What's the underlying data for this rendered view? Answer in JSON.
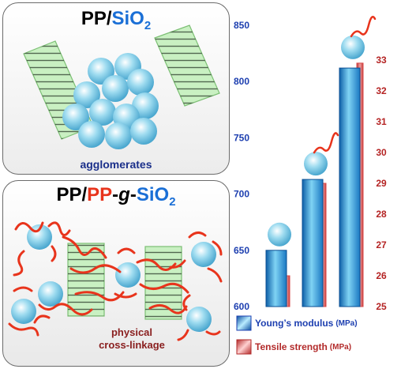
{
  "top_panel": {
    "title_parts": [
      "PP",
      "/",
      "SiO",
      "2"
    ],
    "caption": "agglomerates"
  },
  "bottom_panel": {
    "title_parts": [
      "PP",
      "/",
      "PP",
      "-",
      "g",
      "-",
      "SiO",
      "2"
    ],
    "caption_lines": [
      "physical",
      "cross-linkage"
    ]
  },
  "colors": {
    "blue_bar": "#2ea6df",
    "red_bar": "#d94848",
    "left_axis_text": "#1d3fb0",
    "right_axis_text": "#b52424",
    "polymer_chain": "#e8341c",
    "crystal_fill": "#c9f0c2",
    "particle": "#8fd3ea"
  },
  "chart_data": {
    "type": "bar",
    "categories": [
      "",
      "",
      ""
    ],
    "series": [
      {
        "name": "Young’s modulus",
        "unit": "(MPa)",
        "axis": "left",
        "values": [
          650,
          713,
          812
        ]
      },
      {
        "name": "Tensile strength",
        "unit": "(MPa)",
        "axis": "right",
        "values": [
          26.0,
          29.0,
          32.9
        ]
      }
    ],
    "left_axis": {
      "ylim": [
        600,
        850
      ],
      "ticks": [
        "600",
        "650",
        "700",
        "750",
        "800",
        "850"
      ]
    },
    "right_axis": {
      "ylim": [
        25,
        33
      ],
      "ticks": [
        "25",
        "26",
        "27",
        "28",
        "29",
        "30",
        "31",
        "32",
        "33"
      ]
    },
    "grid": false,
    "legend_position": "bottom-right"
  }
}
